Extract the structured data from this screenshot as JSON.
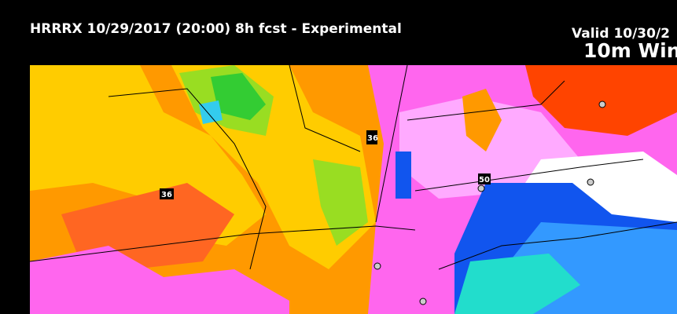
{
  "header": {
    "title": "HRRRX 10/29/2017 (20:00) 8h fcst - Experimental",
    "valid": "Valid 10/30/2",
    "product": "10m Win"
  },
  "map": {
    "route_labels": [
      "36",
      "36",
      "50"
    ],
    "colors": {
      "orange": "#ff9900",
      "yellow": "#ffcc00",
      "lime": "#99dd22",
      "green": "#33cc33",
      "cyan": "#33ccee",
      "pink": "#ff66ee",
      "lightpink": "#ffaaff",
      "white": "#ffffff",
      "red": "#ff4400",
      "blue": "#1155ee",
      "lightblue": "#3399ff",
      "teal": "#22ddcc"
    }
  }
}
